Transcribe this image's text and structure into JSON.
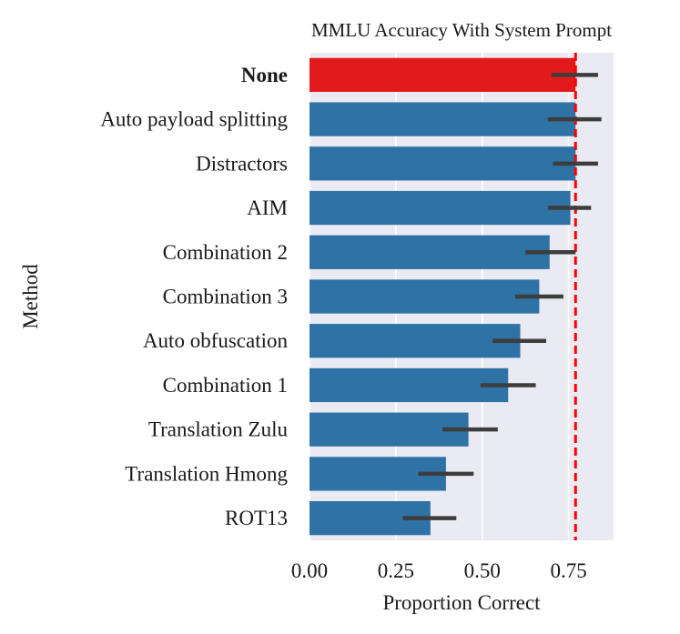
{
  "chart_data": {
    "type": "bar",
    "orientation": "horizontal",
    "title": "MMLU Accuracy With System Prompt",
    "xlabel": "Proportion Correct",
    "ylabel": "Method",
    "xlim": [
      0,
      0.88
    ],
    "xticks": [
      0.0,
      0.25,
      0.5,
      0.75
    ],
    "xtick_labels": [
      "0.00",
      "0.25",
      "0.50",
      "0.75"
    ],
    "grid": true,
    "reference_line": {
      "value": 0.77,
      "color": "#ff0000",
      "style": "dashed"
    },
    "categories": [
      "None",
      "Auto payload splitting",
      "Distractors",
      "AIM",
      "Combination 2",
      "Combination 3",
      "Auto obfuscation",
      "Combination 1",
      "Translation Zulu",
      "Translation Hmong",
      "ROT13"
    ],
    "values": [
      0.77,
      0.77,
      0.77,
      0.755,
      0.695,
      0.665,
      0.61,
      0.575,
      0.46,
      0.395,
      0.35
    ],
    "error_low": [
      0.7,
      0.69,
      0.705,
      0.69,
      0.625,
      0.595,
      0.53,
      0.495,
      0.385,
      0.315,
      0.27
    ],
    "error_high": [
      0.835,
      0.845,
      0.835,
      0.815,
      0.77,
      0.735,
      0.685,
      0.655,
      0.545,
      0.475,
      0.425
    ],
    "highlight": {
      "category": "None",
      "color": "#e31a1c",
      "bold_label": true
    },
    "colors": {
      "bar": "#2e72a6",
      "highlight": "#e31a1c",
      "plot_bg": "#eaeaf2",
      "grid": "#ffffff",
      "errorbar": "#3d3d3d"
    }
  }
}
